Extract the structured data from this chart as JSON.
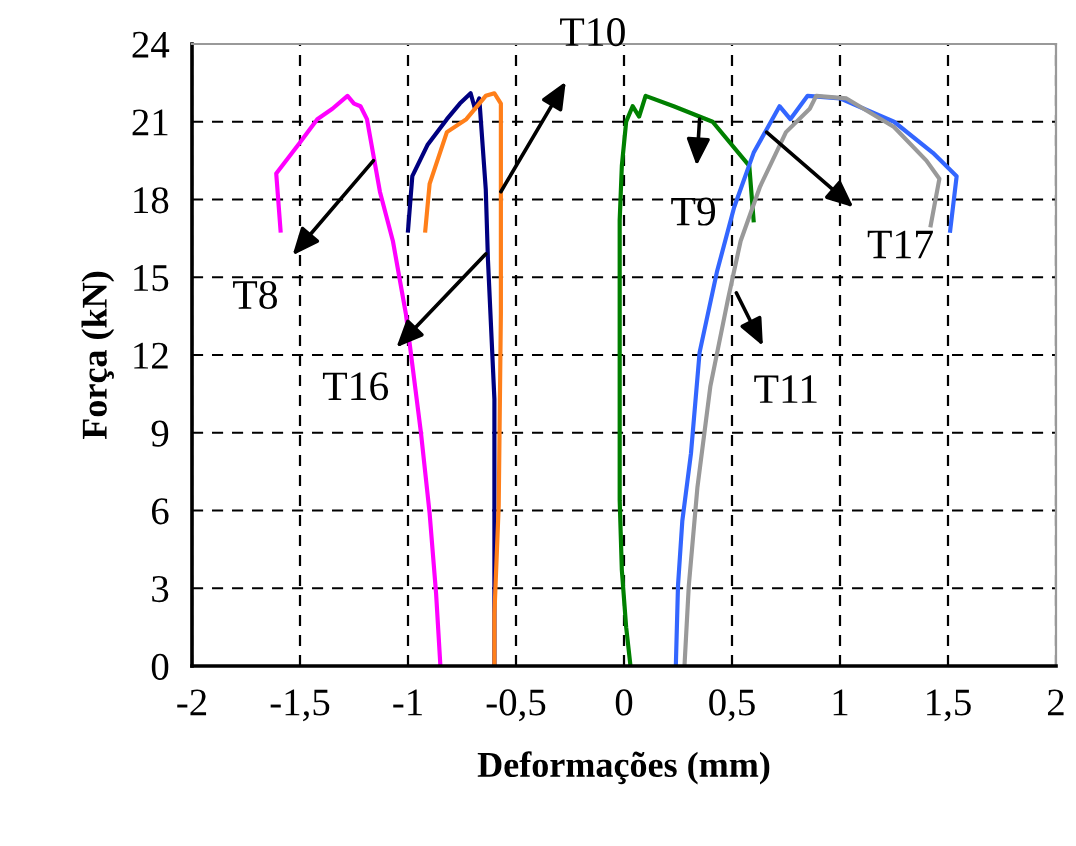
{
  "chart_data": {
    "type": "line",
    "xlabel": "Deformações (mm)",
    "ylabel": "Força (kN)",
    "xlim": [
      -2,
      2
    ],
    "ylim": [
      0,
      24
    ],
    "xticks": [
      -2,
      {
        "value": -1.5,
        "label": "-1,5"
      },
      -1,
      {
        "value": -0.5,
        "label": "-0,5"
      },
      0,
      {
        "value": 0.5,
        "label": "0,5"
      },
      1,
      {
        "value": 1.5,
        "label": "1,5"
      },
      2
    ],
    "yticks": [
      0,
      3,
      6,
      9,
      12,
      15,
      18,
      21,
      24
    ],
    "grid": true,
    "line_style": "solid",
    "marker": "none",
    "series": [
      {
        "color": "#ff00ff",
        "x": [
          -1.59,
          -1.61,
          -1.5,
          -1.42,
          -1.35,
          -1.28,
          -1.25,
          -1.22,
          -1.19,
          -1.13,
          -1.07,
          -1.01,
          -0.94,
          -0.9,
          -0.87,
          -0.85
        ],
        "values": [
          16.8,
          19.0,
          20.2,
          21.1,
          21.5,
          22.0,
          21.7,
          21.6,
          21.1,
          18.3,
          16.4,
          13.6,
          9.0,
          5.9,
          2.8,
          0
        ]
      },
      {
        "color": "#000080",
        "x": [
          -1.0,
          -0.98,
          -0.91,
          -0.82,
          -0.76,
          -0.71,
          -0.69,
          -0.67,
          -0.64,
          -0.63,
          -0.6,
          -0.6
        ],
        "values": [
          16.8,
          18.9,
          20.1,
          21.1,
          21.7,
          22.1,
          21.5,
          21.9,
          18.4,
          15.7,
          10.3,
          0
        ]
      },
      {
        "color": "#ff7f1a",
        "x": [
          -0.92,
          -0.9,
          -0.82,
          -0.73,
          -0.64,
          -0.6,
          -0.57,
          -0.57,
          -0.58,
          -0.6,
          -0.6
        ],
        "values": [
          16.8,
          18.6,
          20.6,
          21.1,
          22.0,
          22.1,
          21.7,
          13.6,
          6.2,
          2.0,
          0
        ]
      },
      {
        "color": "#008000",
        "x": [
          0.03,
          0.01,
          -0.01,
          -0.02,
          -0.02,
          -0.01,
          0.01,
          0.04,
          0.07,
          0.1,
          0.23,
          0.41,
          0.58,
          0.6
        ],
        "values": [
          0,
          1.5,
          3.7,
          6.4,
          17.2,
          19.3,
          21.0,
          21.6,
          21.2,
          22.0,
          21.6,
          21.0,
          19.3,
          17.2
        ]
      },
      {
        "color": "#3366ff",
        "x": [
          0.24,
          0.25,
          0.27,
          0.31,
          0.35,
          0.43,
          0.51,
          0.6,
          0.72,
          0.77,
          0.85,
          1.0,
          1.25,
          1.43,
          1.54,
          1.51
        ],
        "values": [
          0,
          3.1,
          5.6,
          8.2,
          12.1,
          15.2,
          17.7,
          19.8,
          21.6,
          21.1,
          22.0,
          21.9,
          21.0,
          19.8,
          18.9,
          16.8
        ]
      },
      {
        "color": "#999999",
        "x": [
          0.28,
          0.3,
          0.34,
          0.4,
          0.48,
          0.54,
          0.63,
          0.75,
          0.86,
          0.89,
          1.03,
          1.25,
          1.4,
          1.46,
          1.42
        ],
        "values": [
          0,
          3.1,
          6.9,
          10.8,
          14.1,
          16.4,
          18.5,
          20.6,
          21.5,
          22.0,
          21.9,
          20.8,
          19.5,
          18.8,
          17.0
        ]
      }
    ],
    "annotations": [
      {
        "text": "T8",
        "x": -1.16,
        "y": 19.5
      },
      {
        "text": "T16",
        "x": -0.64,
        "y": 15.9
      },
      {
        "text": "T10",
        "x": -0.57,
        "y": 18.3
      },
      {
        "text": "T9",
        "x": 0.35,
        "y": 21.1
      },
      {
        "text": "T17",
        "x": 0.66,
        "y": 20.6
      },
      {
        "text": "T11",
        "x": 0.52,
        "y": 14.4
      }
    ]
  }
}
